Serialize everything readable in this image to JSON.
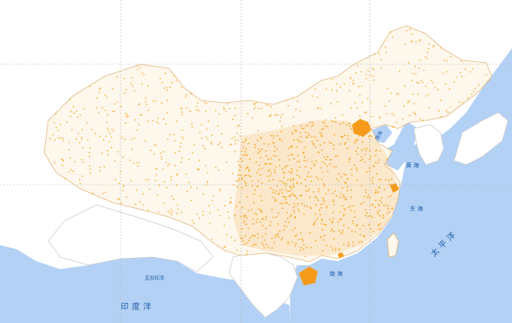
{
  "map": {
    "labels": {
      "bohai": "渤海",
      "yellow_sea": "黄 海",
      "east_sea": "东 海",
      "south_sea": "南 海",
      "pacific": "太平洋",
      "indian_ocean": "印度洋",
      "bay_of_bengal": "孟加拉湾"
    },
    "colors": {
      "ocean": "#b3d1f5",
      "land": "#ffffff",
      "china_fill": "#fdf7ec",
      "dot": "#f5a623",
      "highlight": "#f59a1a",
      "label": "#1f5fa8"
    }
  }
}
